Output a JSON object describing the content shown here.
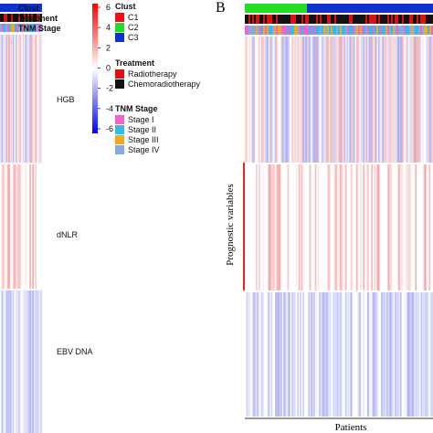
{
  "chart_data": {
    "type": "heatmap",
    "panel_letter": "B",
    "annotation_tracks": [
      "Clust",
      "Treatment",
      "TNM Stage"
    ],
    "row_variables": [
      "HGB",
      "dNLR",
      "EBV DNA"
    ],
    "ylabel": "Prognostic variables",
    "xlabel": "Patients",
    "color_scale": {
      "ticks": [
        6,
        4,
        2,
        0,
        -2,
        -4,
        -6
      ],
      "low_color": "#0000ff",
      "mid_color": "#ffffff",
      "high_color": "#ff0000"
    },
    "legends": [
      {
        "title": "Clust",
        "entries": [
          {
            "label": "C1",
            "color": "#ee1111"
          },
          {
            "label": "C2",
            "color": "#22dd22"
          },
          {
            "label": "C3",
            "color": "#1133cc"
          }
        ]
      },
      {
        "title": "Treatment",
        "entries": [
          {
            "label": "Radiotherapy",
            "color": "#dd1111"
          },
          {
            "label": "Chemoradiotherapy",
            "color": "#111111"
          }
        ]
      },
      {
        "title": "TNM Stage",
        "entries": [
          {
            "label": "Stage I",
            "color": "#ee66cc"
          },
          {
            "label": "Stage II",
            "color": "#33bbee"
          },
          {
            "label": "Stage III",
            "color": "#eeaa22"
          },
          {
            "label": "Stage IV",
            "color": "#88aadd"
          }
        ]
      }
    ]
  }
}
